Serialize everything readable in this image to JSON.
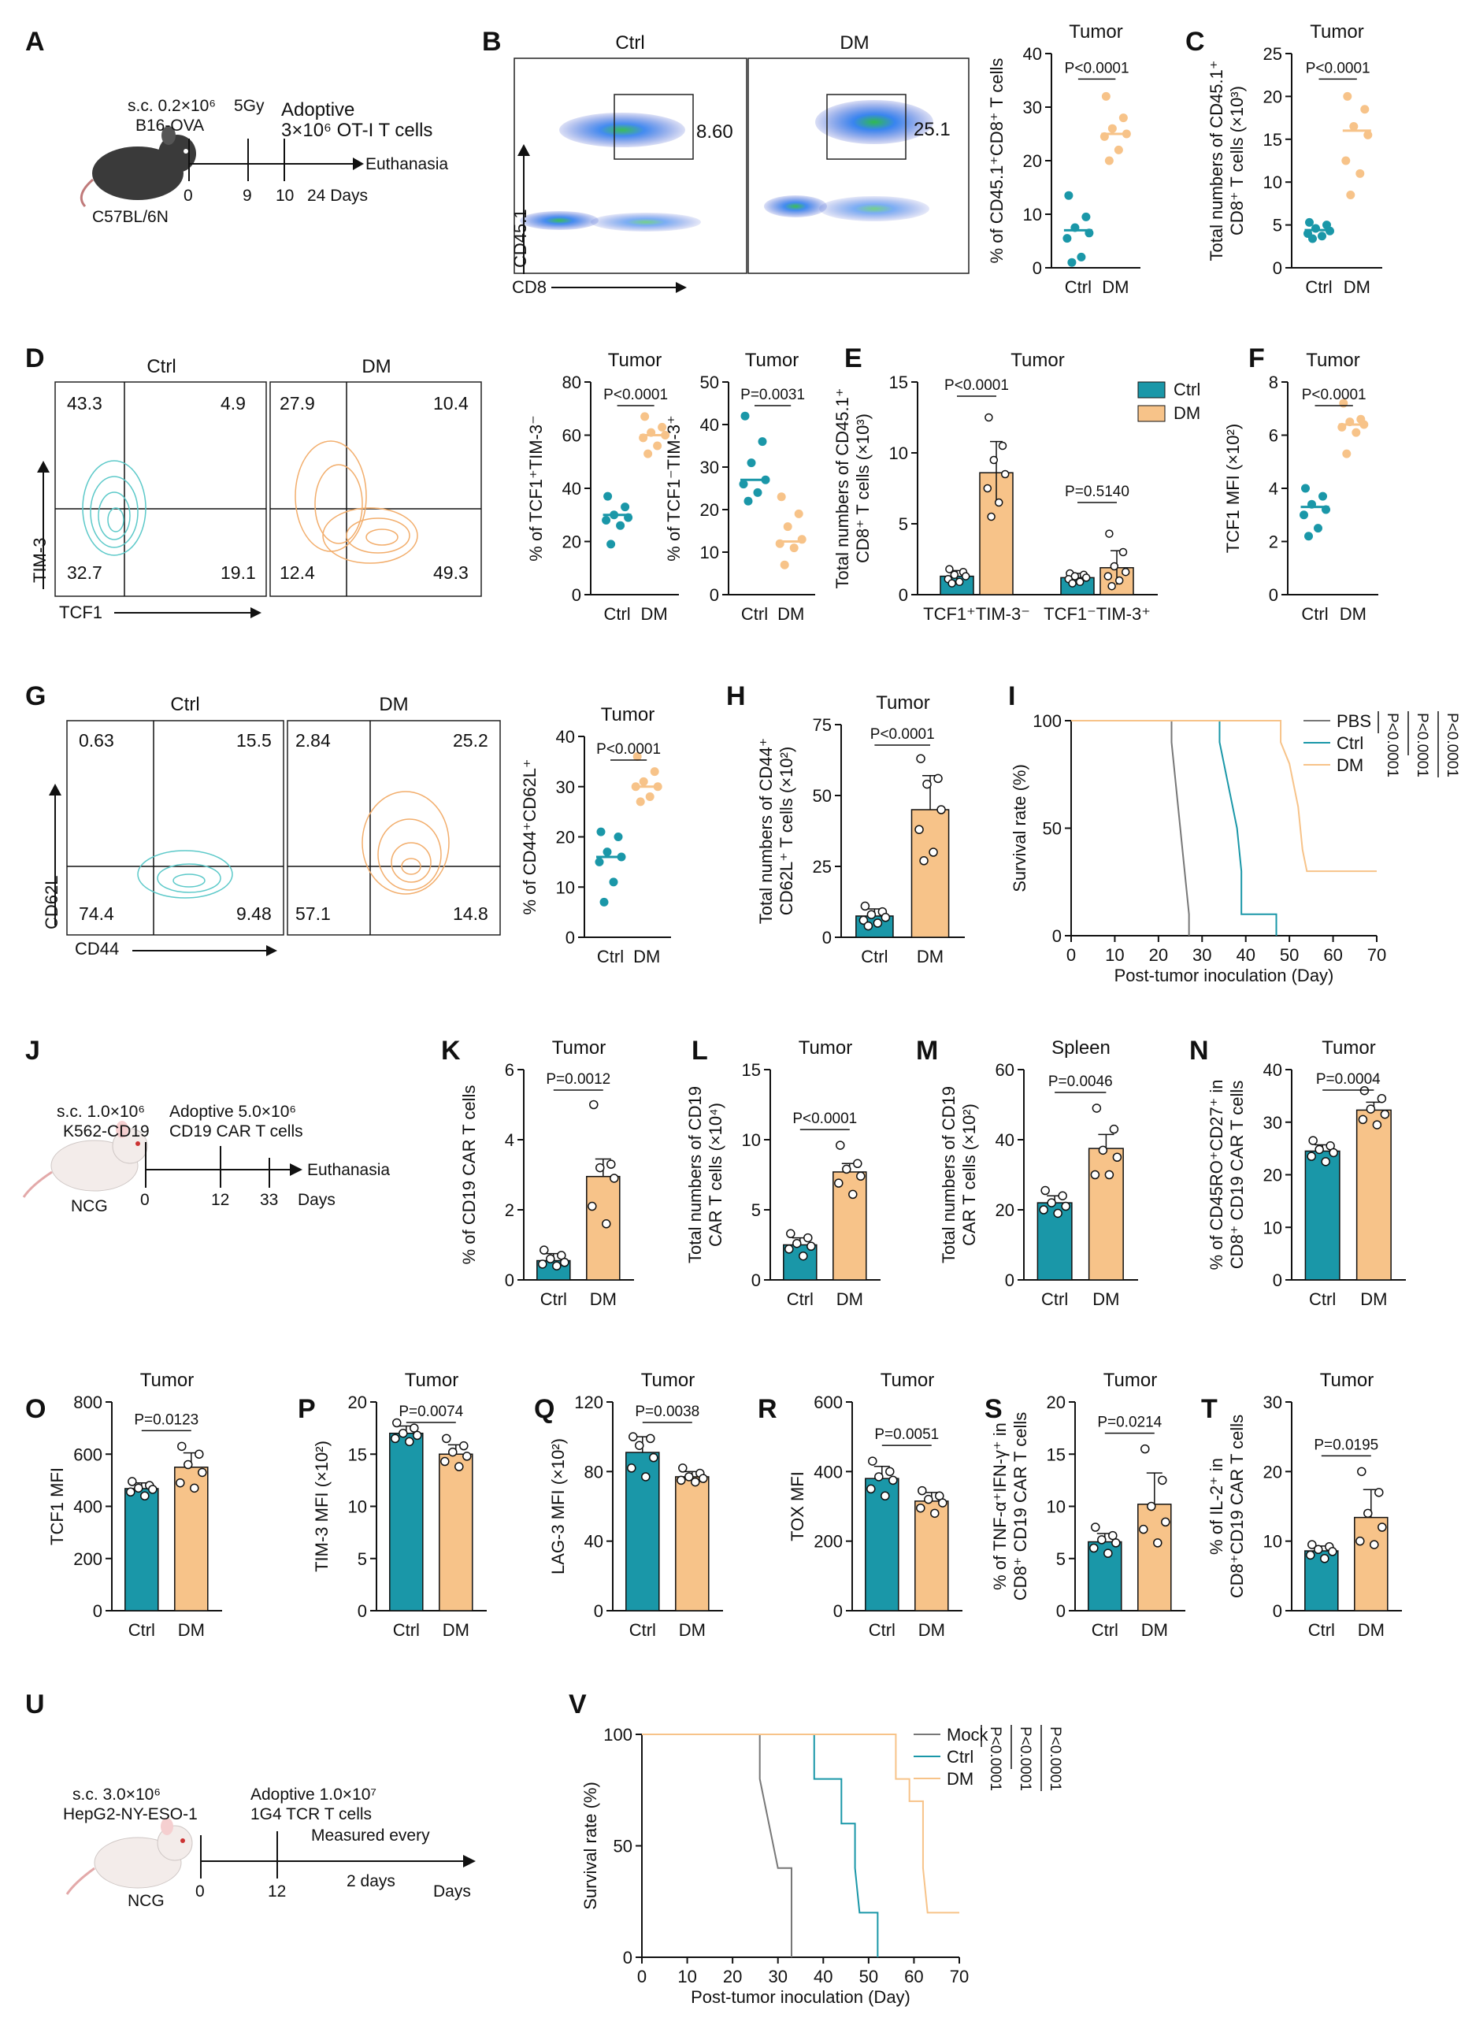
{
  "colors": {
    "ctrl": "#1a97a8",
    "dm": "#f7c389",
    "pbs": "#777777",
    "mock": "#777777",
    "line": "#111111"
  },
  "panels": {
    "A": "A",
    "B": "B",
    "C": "C",
    "D": "D",
    "E": "E",
    "F": "F",
    "G": "G",
    "H": "H",
    "I": "I",
    "J": "J",
    "K": "K",
    "L": "L",
    "M": "M",
    "N": "N",
    "O": "O",
    "P": "P",
    "Q": "Q",
    "R": "R",
    "S": "S",
    "T": "T",
    "U": "U",
    "V": "V"
  },
  "schematicA": {
    "line1": "s.c. 0.2×10⁶",
    "line2": "B16-OVA",
    "dose": "5Gy",
    "adoptive": "Adoptive",
    "cells": "3×10⁶ OT-I  T cells",
    "end": "Euthanasia",
    "strain": "C57BL/6N",
    "times": [
      "0",
      "9",
      "10",
      "24 Days"
    ]
  },
  "schematicJ": {
    "line1": "s.c. 1.0×10⁶",
    "line2": "K562-CD19",
    "adoptive": "Adoptive 5.0×10⁶",
    "cells": "CD19 CAR T cells",
    "end": "Euthanasia",
    "strain": "NCG",
    "times": [
      "0",
      "12",
      "33",
      "Days"
    ]
  },
  "schematicU": {
    "line1": "s.c. 3.0×10⁶",
    "line2": "HepG2-NY-ESO-1",
    "adoptive": "Adoptive 1.0×10⁷",
    "cells": "1G4 TCR T cells",
    "measured": "Measured every",
    "every": "2 days",
    "end": "Days",
    "strain": "NCG",
    "times": [
      "0",
      "12"
    ]
  },
  "flowB": {
    "ctrl": "Ctrl",
    "dm": "DM",
    "ctrl_val": "8.60",
    "dm_val": "25.1",
    "xlab": "CD8",
    "ylab": "CD45.1"
  },
  "flowD": {
    "ctrl": "Ctrl",
    "dm": "DM",
    "ctrl_q": [
      "43.3",
      "4.9",
      "32.7",
      "19.1"
    ],
    "dm_q": [
      "27.9",
      "10.4",
      "12.4",
      "49.3"
    ],
    "xlab": "TCF1",
    "ylab": "TIM-3"
  },
  "flowG": {
    "ctrl": "Ctrl",
    "dm": "DM",
    "ctrl_q": [
      "0.63",
      "15.5",
      "74.4",
      "9.48"
    ],
    "dm_q": [
      "2.84",
      "25.2",
      "57.1",
      "14.8"
    ],
    "xlab": "CD44",
    "ylab": "CD62L"
  },
  "chart_data": [
    {
      "id": "B",
      "type": "scatter",
      "title": "Tumor",
      "ylabel": "% of CD45.1⁺CD8⁺ T cells",
      "categories": [
        "Ctrl",
        "DM"
      ],
      "ylim": [
        0,
        40
      ],
      "yticks": [
        0,
        10,
        20,
        30,
        40
      ],
      "ctrl": [
        13.5,
        9.5,
        7.5,
        6.5,
        5.5,
        2.0,
        1.0
      ],
      "dm": [
        32.0,
        28.0,
        26.0,
        25.0,
        24.5,
        22.0,
        20.0
      ],
      "means": [
        7.0,
        25.0
      ],
      "p": "P<0.0001"
    },
    {
      "id": "C",
      "type": "scatter",
      "title": "Tumor",
      "ylabel": "Total numbers of CD45.1⁺ CD8⁺ T cells (×10³)",
      "categories": [
        "Ctrl",
        "DM"
      ],
      "ylim": [
        0,
        25
      ],
      "yticks": [
        0,
        5,
        10,
        15,
        20,
        25
      ],
      "ctrl": [
        5.3,
        5.0,
        4.6,
        4.3,
        4.0,
        3.7,
        3.4
      ],
      "dm": [
        20.0,
        18.5,
        16.5,
        15.5,
        12.5,
        11.0,
        8.5
      ],
      "means": [
        4.4,
        16.0
      ],
      "p": "P<0.0001"
    },
    {
      "id": "D1",
      "type": "scatter",
      "title": "Tumor",
      "ylabel": "% of TCF1⁺TIM-3⁻",
      "categories": [
        "Ctrl",
        "DM"
      ],
      "ylim": [
        0,
        80
      ],
      "yticks": [
        0,
        20,
        40,
        60,
        80
      ],
      "ctrl": [
        37,
        33,
        30,
        29,
        28,
        26,
        19
      ],
      "dm": [
        67,
        63,
        61,
        60,
        59,
        56,
        53
      ],
      "means": [
        30,
        60
      ],
      "p": "P<0.0001"
    },
    {
      "id": "D2",
      "type": "scatter",
      "title": "Tumor",
      "ylabel": "% of TCF1⁻TIM-3⁺",
      "categories": [
        "Ctrl",
        "DM"
      ],
      "ylim": [
        0,
        50
      ],
      "yticks": [
        0,
        10,
        20,
        30,
        40,
        50
      ],
      "ctrl": [
        42,
        36,
        31,
        27,
        26,
        24,
        22
      ],
      "dm": [
        23,
        19,
        16,
        13,
        12,
        11,
        7
      ],
      "means": [
        27,
        12.5
      ],
      "p": "P=0.0031"
    },
    {
      "id": "E",
      "type": "grouped-bar",
      "title": "Tumor",
      "ylabel": "Total numbers of CD45.1⁺ CD8⁺ T cells (×10³)",
      "groups": [
        "TCF1⁺TIM-3⁻",
        "TCF1⁻TIM-3⁺"
      ],
      "legend": [
        "Ctrl",
        "DM"
      ],
      "ylim": [
        0,
        15
      ],
      "yticks": [
        0,
        5,
        10,
        15
      ],
      "ctrl": [
        1.3,
        1.2
      ],
      "dm": [
        8.6,
        1.9
      ],
      "ctrl_err": [
        0.4,
        0.3
      ],
      "dm_err": [
        2.2,
        1.2
      ],
      "ctrl_pts": [
        [
          1.8,
          1.6,
          1.4,
          1.3,
          1.1,
          0.9,
          0.8
        ],
        [
          1.5,
          1.4,
          1.3,
          1.2,
          1.1,
          0.9,
          0.8
        ]
      ],
      "dm_pts": [
        [
          12.5,
          10.5,
          9.5,
          8.5,
          7.5,
          6.5,
          5.5
        ],
        [
          4.3,
          3.0,
          2.0,
          1.6,
          1.3,
          1.0,
          0.6
        ]
      ],
      "p": [
        "P<0.0001",
        "P=0.5140"
      ]
    },
    {
      "id": "F",
      "type": "scatter",
      "title": "Tumor",
      "ylabel": "TCF1 MFI (×10²)",
      "categories": [
        "Ctrl",
        "DM"
      ],
      "ylim": [
        0,
        8
      ],
      "yticks": [
        0,
        2,
        4,
        6,
        8
      ],
      "ctrl": [
        4.0,
        3.7,
        3.4,
        3.2,
        3.0,
        2.5,
        2.2
      ],
      "dm": [
        7.2,
        6.6,
        6.5,
        6.4,
        6.3,
        6.1,
        5.3
      ],
      "means": [
        3.3,
        6.4
      ],
      "p": "P<0.0001"
    },
    {
      "id": "G",
      "type": "scatter",
      "title": "Tumor",
      "ylabel": "% of CD44⁺CD62L⁺",
      "categories": [
        "Ctrl",
        "DM"
      ],
      "ylim": [
        0,
        40
      ],
      "yticks": [
        0,
        10,
        20,
        30,
        40
      ],
      "ctrl": [
        21,
        20,
        17,
        16,
        15,
        11,
        7
      ],
      "dm": [
        36,
        33,
        31,
        30,
        30,
        28,
        27
      ],
      "means": [
        16,
        30
      ],
      "p": "P<0.0001"
    },
    {
      "id": "H",
      "type": "bar",
      "title": "Tumor",
      "ylabel": "Total numbers of CD44⁺ CD62L⁺ T cells (×10²)",
      "categories": [
        "Ctrl",
        "DM"
      ],
      "ylim": [
        0,
        75
      ],
      "yticks": [
        0,
        25,
        50,
        75
      ],
      "values": [
        7.5,
        45
      ],
      "err": [
        2.5,
        12
      ],
      "ctrl_pts": [
        11,
        9,
        8,
        7,
        6,
        5,
        4
      ],
      "dm_pts": [
        63,
        56,
        54,
        45,
        38,
        30,
        27
      ],
      "p": "P<0.0001"
    },
    {
      "id": "I",
      "type": "survival",
      "xlabel": "Post-tumor inoculation (Day)",
      "ylabel": "Survival rate (%)",
      "xlim": [
        0,
        70
      ],
      "xticks": [
        0,
        10,
        20,
        30,
        40,
        50,
        60,
        70
      ],
      "yticks": [
        0,
        50,
        100
      ],
      "series": [
        {
          "name": "PBS",
          "steps": [
            [
              0,
              100
            ],
            [
              23,
              100
            ],
            [
              23,
              90
            ],
            [
              24,
              70
            ],
            [
              25,
              50
            ],
            [
              26,
              30
            ],
            [
              27,
              10
            ],
            [
              27,
              0
            ]
          ],
          "end": 27
        },
        {
          "name": "Ctrl",
          "steps": [
            [
              0,
              100
            ],
            [
              34,
              100
            ],
            [
              34,
              90
            ],
            [
              35,
              80
            ],
            [
              36,
              70
            ],
            [
              37,
              60
            ],
            [
              38,
              50
            ],
            [
              39,
              30
            ],
            [
              39,
              10
            ],
            [
              47,
              10
            ],
            [
              47,
              0
            ]
          ],
          "end": 47
        },
        {
          "name": "DM",
          "steps": [
            [
              0,
              100
            ],
            [
              48,
              100
            ],
            [
              48,
              90
            ],
            [
              50,
              80
            ],
            [
              51,
              70
            ],
            [
              52,
              60
            ],
            [
              53,
              40
            ],
            [
              54,
              30
            ],
            [
              70,
              30
            ]
          ],
          "end": 70
        }
      ],
      "p": [
        "P<0.0001",
        "P<0.0001",
        "P<0.0001"
      ]
    },
    {
      "id": "K",
      "type": "bar",
      "title": "Tumor",
      "ylabel": "% of CD19 CAR T cells",
      "categories": [
        "Ctrl",
        "DM"
      ],
      "ylim": [
        0,
        6
      ],
      "yticks": [
        0,
        2,
        4,
        6
      ],
      "values": [
        0.55,
        2.95
      ],
      "err": [
        0.2,
        0.5
      ],
      "ctrl_pts": [
        0.85,
        0.7,
        0.6,
        0.5,
        0.45,
        0.4
      ],
      "dm_pts": [
        5.0,
        3.3,
        3.2,
        2.9,
        2.1,
        1.6
      ],
      "p": "P=0.0012"
    },
    {
      "id": "L",
      "type": "bar",
      "title": "Tumor",
      "ylabel": "Total numbers of CD19 CAR T cells (×10⁴)",
      "categories": [
        "Ctrl",
        "DM"
      ],
      "ylim": [
        0,
        15
      ],
      "yticks": [
        0,
        5,
        10,
        15
      ],
      "values": [
        2.5,
        7.7
      ],
      "err": [
        0.5,
        0.6
      ],
      "ctrl_pts": [
        3.3,
        3.0,
        2.6,
        2.4,
        2.2,
        1.7
      ],
      "dm_pts": [
        9.6,
        8.3,
        7.9,
        7.4,
        6.9,
        6.1
      ],
      "p": "P<0.0001"
    },
    {
      "id": "M",
      "type": "bar",
      "title": "Spleen",
      "ylabel": "Total numbers of CD19 CAR T cells (×10²)",
      "categories": [
        "Ctrl",
        "DM"
      ],
      "ylim": [
        0,
        60
      ],
      "yticks": [
        0,
        20,
        40,
        60
      ],
      "values": [
        22,
        37.5
      ],
      "err": [
        2,
        4
      ],
      "ctrl_pts": [
        25.5,
        24,
        22,
        21,
        20,
        19
      ],
      "dm_pts": [
        49,
        43,
        37,
        35,
        30,
        30
      ],
      "p": "P=0.0046"
    },
    {
      "id": "N",
      "type": "bar",
      "title": "Tumor",
      "ylabel": "% of CD45RO⁺CD27⁺ in CD8⁺ CD19 CAR T cells",
      "categories": [
        "Ctrl",
        "DM"
      ],
      "ylim": [
        0,
        40
      ],
      "yticks": [
        0,
        10,
        20,
        30,
        40
      ],
      "values": [
        24.5,
        32.3
      ],
      "err": [
        1.2,
        1.5
      ],
      "ctrl_pts": [
        26.5,
        25.5,
        24.8,
        24.2,
        23.5,
        22.5
      ],
      "dm_pts": [
        36,
        34.5,
        32.5,
        31.5,
        30.5,
        29.5
      ],
      "p": "P=0.0004"
    },
    {
      "id": "O",
      "type": "bar",
      "title": "Tumor",
      "ylabel": "TCF1 MFI",
      "categories": [
        "Ctrl",
        "DM"
      ],
      "ylim": [
        0,
        800
      ],
      "yticks": [
        0,
        200,
        400,
        600,
        800
      ],
      "values": [
        468,
        550
      ],
      "err": [
        22,
        55
      ],
      "ctrl_pts": [
        495,
        480,
        470,
        465,
        455,
        440
      ],
      "dm_pts": [
        630,
        600,
        560,
        530,
        490,
        470
      ],
      "p": "P=0.0123"
    },
    {
      "id": "P",
      "type": "bar",
      "title": "Tumor",
      "ylabel": "TIM-3 MFI (×10²)",
      "categories": [
        "Ctrl",
        "DM"
      ],
      "ylim": [
        0,
        20
      ],
      "yticks": [
        0,
        5,
        10,
        15,
        20
      ],
      "values": [
        17,
        15
      ],
      "err": [
        0.7,
        0.9
      ],
      "ctrl_pts": [
        18,
        17.5,
        17,
        16.8,
        16.5,
        16.2
      ],
      "dm_pts": [
        16.5,
        15.8,
        15.2,
        14.8,
        14.3,
        13.8
      ],
      "p": "P=0.0074"
    },
    {
      "id": "Q",
      "type": "bar",
      "title": "Tumor",
      "ylabel": "LAG-3 MFI (×10²)",
      "categories": [
        "Ctrl",
        "DM"
      ],
      "ylim": [
        0,
        120
      ],
      "yticks": [
        0,
        40,
        80,
        120
      ],
      "values": [
        91,
        77
      ],
      "err": [
        9,
        3
      ],
      "ctrl_pts": [
        100,
        99,
        95,
        88,
        82,
        77
      ],
      "dm_pts": [
        82,
        79,
        77,
        76,
        75,
        74
      ],
      "p": "P=0.0038"
    },
    {
      "id": "R",
      "type": "bar",
      "title": "Tumor",
      "ylabel": "TOX MFI",
      "categories": [
        "Ctrl",
        "DM"
      ],
      "ylim": [
        0,
        600
      ],
      "yticks": [
        0,
        200,
        400,
        600
      ],
      "values": [
        380,
        315
      ],
      "err": [
        35,
        25
      ],
      "ctrl_pts": [
        430,
        400,
        385,
        375,
        350,
        330
      ],
      "dm_pts": [
        345,
        330,
        320,
        310,
        295,
        280
      ],
      "p": "P=0.0051"
    },
    {
      "id": "S",
      "type": "bar",
      "title": "Tumor",
      "ylabel": "% of TNF-α⁺IFN-γ⁺ in CD8⁺ CD19 CAR T cells",
      "categories": [
        "Ctrl",
        "DM"
      ],
      "ylim": [
        0,
        20
      ],
      "yticks": [
        0,
        5,
        10,
        15,
        20
      ],
      "values": [
        6.6,
        10.2
      ],
      "err": [
        0.8,
        3.0
      ],
      "ctrl_pts": [
        8,
        7.2,
        6.8,
        6.5,
        6,
        5.5
      ],
      "dm_pts": [
        15.5,
        12.5,
        10,
        8.5,
        7.8,
        6.5
      ],
      "p": "P=0.0214"
    },
    {
      "id": "T",
      "type": "bar",
      "title": "Tumor",
      "ylabel": "% of IL-2⁺ in CD8⁺CD19 CAR T cells",
      "categories": [
        "Ctrl",
        "DM"
      ],
      "ylim": [
        0,
        30
      ],
      "yticks": [
        0,
        10,
        20,
        30
      ],
      "values": [
        8.6,
        13.4
      ],
      "err": [
        0.7,
        4.0
      ],
      "ctrl_pts": [
        9.5,
        9.2,
        8.8,
        8.5,
        8,
        7.5
      ],
      "dm_pts": [
        20,
        17,
        14,
        12,
        10,
        9.5
      ],
      "p": "P=0.0195"
    },
    {
      "id": "V",
      "type": "survival",
      "xlabel": "Post-tumor inoculation (Day)",
      "ylabel": "Survival rate (%)",
      "xlim": [
        0,
        70
      ],
      "xticks": [
        0,
        10,
        20,
        30,
        40,
        50,
        60,
        70
      ],
      "yticks": [
        0,
        50,
        100
      ],
      "series": [
        {
          "name": "Mock",
          "steps": [
            [
              0,
              100
            ],
            [
              26,
              100
            ],
            [
              26,
              80
            ],
            [
              28,
              60
            ],
            [
              30,
              40
            ],
            [
              33,
              40
            ],
            [
              33,
              0
            ]
          ],
          "end": 33
        },
        {
          "name": "Ctrl",
          "steps": [
            [
              0,
              100
            ],
            [
              38,
              100
            ],
            [
              38,
              80
            ],
            [
              44,
              80
            ],
            [
              44,
              60
            ],
            [
              47,
              60
            ],
            [
              47,
              40
            ],
            [
              48,
              20
            ],
            [
              52,
              20
            ],
            [
              52,
              0
            ]
          ],
          "end": 52
        },
        {
          "name": "DM",
          "steps": [
            [
              0,
              100
            ],
            [
              56,
              100
            ],
            [
              56,
              80
            ],
            [
              59,
              80
            ],
            [
              59,
              70
            ],
            [
              62,
              70
            ],
            [
              62,
              40
            ],
            [
              63,
              20
            ],
            [
              70,
              20
            ]
          ],
          "end": 70
        }
      ],
      "p": [
        "P<0.0001",
        "P<0.0001",
        "P<0.0001"
      ]
    }
  ]
}
